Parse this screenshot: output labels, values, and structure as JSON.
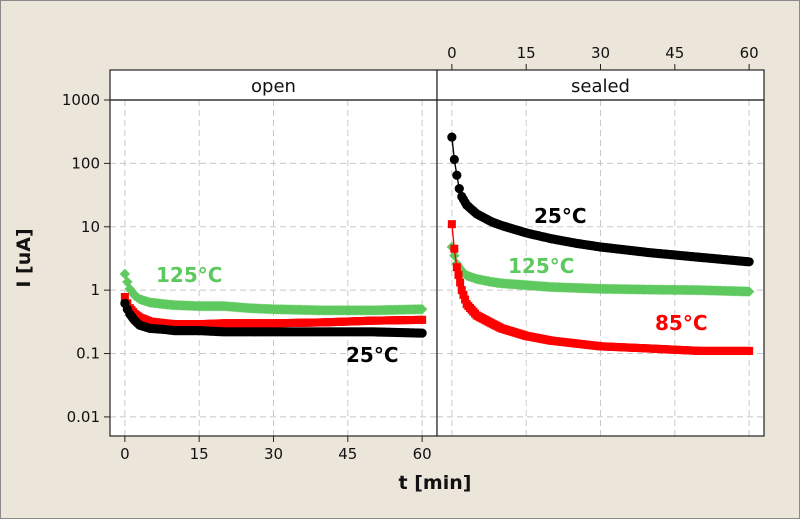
{
  "chart_data": {
    "type": "scatter",
    "xlabel": "t [min]",
    "ylabel": "I [uA]",
    "y_scale": "log",
    "ylim": [
      0.005,
      1000
    ],
    "xlim": [
      -3,
      63
    ],
    "x_ticks": [
      "0",
      "15",
      "30",
      "45",
      "60"
    ],
    "y_ticks": [
      "0.01",
      "0.1",
      "1",
      "10",
      "100",
      "1000"
    ],
    "grid": true,
    "colors": {
      "25C": "#000000",
      "85C": "#ff0000",
      "125C": "#5ec95e"
    },
    "panels": [
      {
        "title": "open",
        "series": [
          {
            "key": "125C",
            "name": "125°C",
            "marker": "diamond",
            "color": "#5ec95e",
            "points": [
              [
                0,
                1.8
              ],
              [
                0.5,
                1.35
              ],
              [
                1,
                1.05
              ],
              [
                2,
                0.82
              ],
              [
                3,
                0.72
              ],
              [
                5,
                0.64
              ],
              [
                8,
                0.6
              ],
              [
                10,
                0.58
              ],
              [
                15,
                0.56
              ],
              [
                20,
                0.56
              ],
              [
                25,
                0.52
              ],
              [
                30,
                0.5
              ],
              [
                40,
                0.48
              ],
              [
                50,
                0.48
              ],
              [
                60,
                0.5
              ]
            ]
          },
          {
            "key": "85C",
            "marker": "square",
            "color": "#ff0000",
            "points": [
              [
                0,
                0.78
              ],
              [
                0.5,
                0.62
              ],
              [
                1,
                0.52
              ],
              [
                2,
                0.42
              ],
              [
                3,
                0.37
              ],
              [
                5,
                0.32
              ],
              [
                8,
                0.3
              ],
              [
                10,
                0.29
              ],
              [
                15,
                0.29
              ],
              [
                20,
                0.3
              ],
              [
                30,
                0.3
              ],
              [
                40,
                0.31
              ],
              [
                50,
                0.33
              ],
              [
                60,
                0.34
              ]
            ]
          },
          {
            "key": "25C",
            "name": "25°C",
            "marker": "circle",
            "color": "#000000",
            "points": [
              [
                0,
                0.62
              ],
              [
                0.5,
                0.5
              ],
              [
                1,
                0.42
              ],
              [
                2,
                0.33
              ],
              [
                3,
                0.28
              ],
              [
                5,
                0.25
              ],
              [
                8,
                0.24
              ],
              [
                10,
                0.23
              ],
              [
                15,
                0.23
              ],
              [
                20,
                0.22
              ],
              [
                30,
                0.22
              ],
              [
                40,
                0.22
              ],
              [
                50,
                0.22
              ],
              [
                60,
                0.21
              ]
            ]
          }
        ]
      },
      {
        "title": "sealed",
        "series": [
          {
            "key": "25C",
            "name": "25°C",
            "marker": "circle",
            "color": "#000000",
            "points": [
              [
                0,
                260
              ],
              [
                0.5,
                115
              ],
              [
                1,
                65
              ],
              [
                1.5,
                40
              ],
              [
                2,
                30
              ],
              [
                3,
                22
              ],
              [
                5,
                16
              ],
              [
                8,
                12
              ],
              [
                10,
                10.5
              ],
              [
                15,
                8
              ],
              [
                20,
                6.5
              ],
              [
                25,
                5.5
              ],
              [
                30,
                4.8
              ],
              [
                40,
                3.9
              ],
              [
                50,
                3.3
              ],
              [
                60,
                2.8
              ]
            ]
          },
          {
            "key": "125C",
            "name": "125°C",
            "marker": "diamond",
            "color": "#5ec95e",
            "points": [
              [
                0,
                4.8
              ],
              [
                0.5,
                3.5
              ],
              [
                1,
                2.6
              ],
              [
                2,
                2.0
              ],
              [
                3,
                1.7
              ],
              [
                5,
                1.5
              ],
              [
                8,
                1.35
              ],
              [
                10,
                1.28
              ],
              [
                15,
                1.2
              ],
              [
                20,
                1.12
              ],
              [
                30,
                1.05
              ],
              [
                40,
                1.02
              ],
              [
                50,
                1.0
              ],
              [
                60,
                0.95
              ]
            ]
          },
          {
            "key": "85C",
            "name": "85°C",
            "marker": "square",
            "color": "#ff0000",
            "points": [
              [
                0,
                11
              ],
              [
                0.5,
                4.5
              ],
              [
                1,
                2.3
              ],
              [
                2,
                1.0
              ],
              [
                3,
                0.6
              ],
              [
                5,
                0.4
              ],
              [
                8,
                0.3
              ],
              [
                10,
                0.25
              ],
              [
                15,
                0.19
              ],
              [
                20,
                0.16
              ],
              [
                30,
                0.13
              ],
              [
                40,
                0.12
              ],
              [
                50,
                0.11
              ],
              [
                60,
                0.11
              ]
            ]
          }
        ]
      }
    ]
  }
}
